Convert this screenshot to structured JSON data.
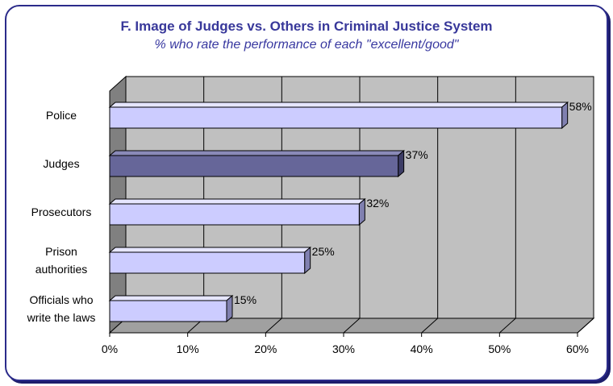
{
  "chart_data": {
    "type": "bar",
    "orientation": "horizontal",
    "title": "F. Image of Judges vs. Others in Criminal Justice System",
    "subtitle": "% who rate the performance of each \"excellent/good\"",
    "categories": [
      "Police",
      "Judges",
      "Prosecutors",
      "Prison authorities",
      "Officials who write the laws"
    ],
    "category_lines": [
      [
        "Police"
      ],
      [
        "Judges"
      ],
      [
        "Prosecutors"
      ],
      [
        "Prison",
        "authorities"
      ],
      [
        "Officials who",
        "write the laws"
      ]
    ],
    "values": [
      58,
      37,
      32,
      25,
      15
    ],
    "data_labels": [
      "58%",
      "37%",
      "32%",
      "25%",
      "15%"
    ],
    "highlight_category": "Judges",
    "xlim": [
      0,
      60
    ],
    "x_ticks": [
      "0%",
      "10%",
      "20%",
      "30%",
      "40%",
      "50%",
      "60%"
    ],
    "grid": true,
    "style": "3d",
    "colors": {
      "bar": "#ccccff",
      "bar_highlight": "#666699",
      "plot_back": "#c0c0c0",
      "plot_side": "#808080",
      "title": "#38389a",
      "frame": "#2b2b8a"
    }
  }
}
